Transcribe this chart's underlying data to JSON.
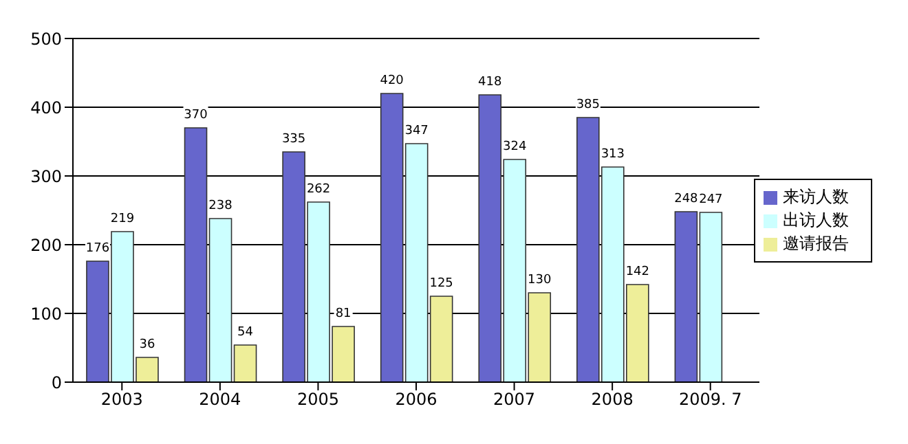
{
  "chart_data": {
    "type": "bar",
    "categories": [
      "2003",
      "2004",
      "2005",
      "2006",
      "2007",
      "2008",
      "2009. 7"
    ],
    "series": [
      {
        "name": "来访人数",
        "color": "#6666cc",
        "values": [
          176,
          370,
          335,
          420,
          418,
          385,
          248
        ]
      },
      {
        "name": "出访人数",
        "color": "#ccffff",
        "values": [
          219,
          238,
          262,
          347,
          324,
          313,
          247
        ]
      },
      {
        "name": "邀请报告",
        "color": "#eeee99",
        "values": [
          36,
          54,
          81,
          125,
          130,
          142,
          null
        ]
      }
    ],
    "ylim": [
      0,
      500
    ],
    "yticks": [
      0,
      100,
      200,
      300,
      400,
      500
    ],
    "grid": "y",
    "legend": "right",
    "data_labels": true
  }
}
